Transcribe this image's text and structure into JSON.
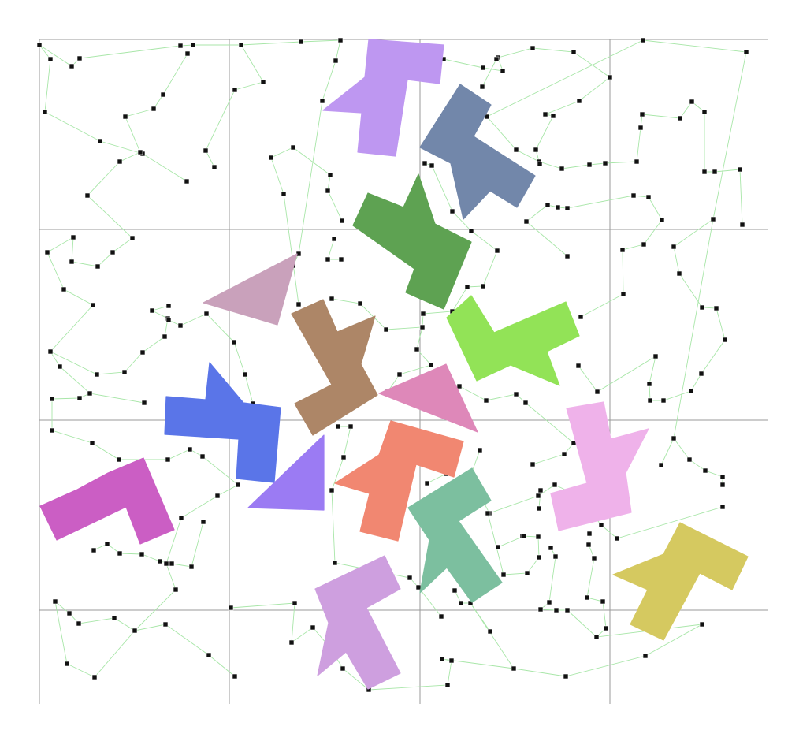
{
  "board": {
    "grid": {
      "cols": 4,
      "rows": 4,
      "line_color": "#9a9a9a"
    },
    "edge_color": "#a8e6a8",
    "node_color": "#111111"
  },
  "pieces": [
    {
      "shape": "L-hook",
      "color": "#c49cf8"
    },
    {
      "shape": "L-hook",
      "color": "#768baf"
    },
    {
      "shape": "L-hook",
      "color": "#61a755"
    },
    {
      "shape": "triangle",
      "color": "#cfa6c1"
    },
    {
      "shape": "L-hook",
      "color": "#b28a6a"
    },
    {
      "shape": "L-hook",
      "color": "#97ea5a"
    },
    {
      "shape": "L-hook",
      "color": "#5d79ef"
    },
    {
      "shape": "triangle",
      "color": "#e58cbf"
    },
    {
      "shape": "L-hook",
      "color": "#f6b8f1"
    },
    {
      "shape": "L-hook",
      "color": "#d161ca"
    },
    {
      "shape": "triangle",
      "color": "#a07ffa"
    },
    {
      "shape": "L-hook",
      "color": "#f88b74"
    },
    {
      "shape": "L-hook",
      "color": "#80c5a4"
    },
    {
      "shape": "L-hook",
      "color": "#dccf63"
    },
    {
      "shape": "L-hook",
      "color": "#d4a4e6"
    }
  ]
}
